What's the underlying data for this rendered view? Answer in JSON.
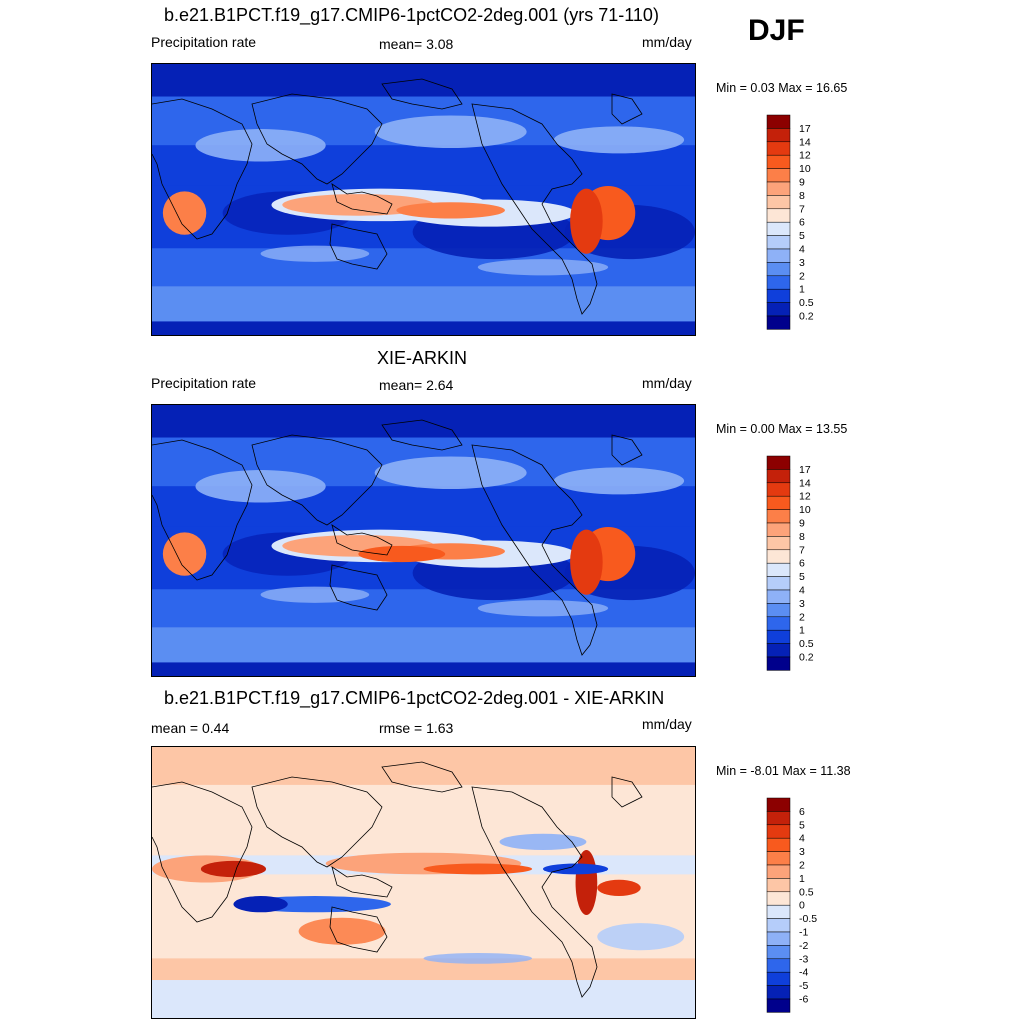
{
  "season": "DJF",
  "panels": [
    {
      "id": "model",
      "title": "b.e21.B1PCT.f19_g17.CMIP6-1pctCO2-2deg.001 (yrs 71-110)",
      "left_label": "Precipitation rate",
      "center_label": "mean=   3.08",
      "units": "mm/day",
      "minmax": "Min =   0.03 Max =  16.65",
      "palette": "precip"
    },
    {
      "id": "obs",
      "title": "XIE-ARKIN",
      "left_label": "Precipitation rate",
      "center_label": "mean=   2.64",
      "units": "mm/day",
      "minmax": "Min =   0.00 Max =  13.55",
      "palette": "precip"
    },
    {
      "id": "diff",
      "title": "b.e21.B1PCT.f19_g17.CMIP6-1pctCO2-2deg.001 - XIE-ARKIN",
      "left_label": "mean =   0.44",
      "center_label": "rmse =   1.63",
      "units": "mm/day",
      "minmax": "Min =  -8.01 Max =  11.38",
      "palette": "diff"
    }
  ],
  "chart_data": [
    {
      "type": "heatmap",
      "title": "b.e21.B1PCT.f19_g17.CMIP6-1pctCO2-2deg.001 (yrs 71-110)",
      "variable": "Precipitation rate",
      "units": "mm/day",
      "mean": 3.08,
      "min": 0.03,
      "max": 16.65,
      "colorbar_labels": [
        "17",
        "14",
        "12",
        "10",
        "9",
        "8",
        "7",
        "6",
        "5",
        "4",
        "3",
        "2",
        "1",
        "0.5",
        "0.2"
      ],
      "colorbar_colors": [
        "#8c0000",
        "#c4210a",
        "#e43a10",
        "#f85a1e",
        "#fc7f48",
        "#fca37a",
        "#fdc6a6",
        "#fde6d6",
        "#dbe7fb",
        "#b5cdfa",
        "#8eb1f7",
        "#5b8ef2",
        "#2e66ec",
        "#0f3fdb",
        "#0521b6",
        "#00008c"
      ]
    },
    {
      "type": "heatmap",
      "title": "XIE-ARKIN",
      "variable": "Precipitation rate",
      "units": "mm/day",
      "mean": 2.64,
      "min": 0.0,
      "max": 13.55,
      "colorbar_labels": [
        "17",
        "14",
        "12",
        "10",
        "9",
        "8",
        "7",
        "6",
        "5",
        "4",
        "3",
        "2",
        "1",
        "0.5",
        "0.2"
      ],
      "colorbar_colors": [
        "#8c0000",
        "#c4210a",
        "#e43a10",
        "#f85a1e",
        "#fc7f48",
        "#fca37a",
        "#fdc6a6",
        "#fde6d6",
        "#dbe7fb",
        "#b5cdfa",
        "#8eb1f7",
        "#5b8ef2",
        "#2e66ec",
        "#0f3fdb",
        "#0521b6",
        "#00008c"
      ]
    },
    {
      "type": "heatmap",
      "title": "b.e21.B1PCT.f19_g17.CMIP6-1pctCO2-2deg.001 - XIE-ARKIN",
      "units": "mm/day",
      "mean": 0.44,
      "rmse": 1.63,
      "min": -8.01,
      "max": 11.38,
      "colorbar_labels": [
        "6",
        "5",
        "4",
        "3",
        "2",
        "1",
        "0.5",
        "0",
        "-0.5",
        "-1",
        "-2",
        "-3",
        "-4",
        "-5",
        "-6"
      ],
      "colorbar_colors": [
        "#8c0000",
        "#c4210a",
        "#e43a10",
        "#f85a1e",
        "#fc7f48",
        "#fca37a",
        "#fdc6a6",
        "#fde6d6",
        "#dbe7fb",
        "#b5cdfa",
        "#8eb1f7",
        "#5b8ef2",
        "#2e66ec",
        "#0f3fdb",
        "#0521b6",
        "#00008c"
      ]
    }
  ]
}
